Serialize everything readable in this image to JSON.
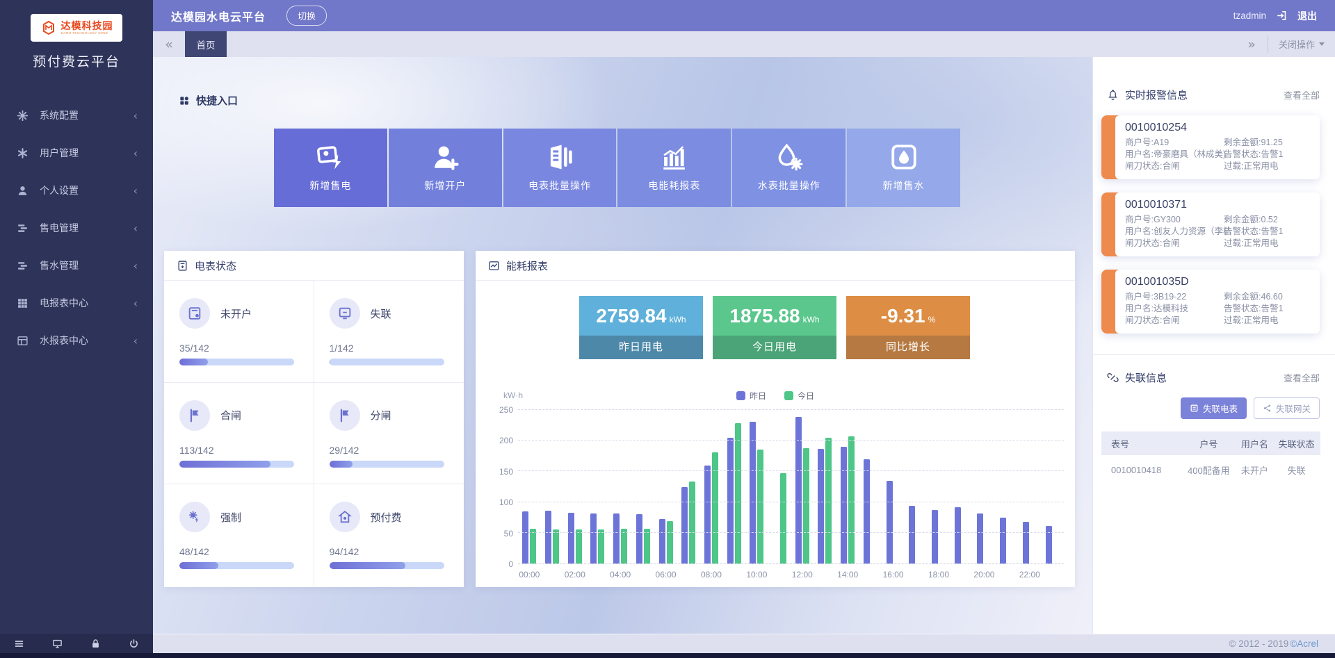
{
  "sidebar": {
    "logo": {
      "brand": "达模科技园",
      "brand_sub": "DAMO TECHNOLOGY ZONE",
      "platform": "预付费云平台"
    },
    "chevron": "‹",
    "items": [
      {
        "icon": "gear-icon",
        "label": "系统配置"
      },
      {
        "icon": "asterisk-icon",
        "label": "用户管理"
      },
      {
        "icon": "user-icon",
        "label": "个人设置"
      },
      {
        "icon": "list-icon",
        "label": "售电管理"
      },
      {
        "icon": "list-icon",
        "label": "售水管理"
      },
      {
        "icon": "grid-icon",
        "label": "电报表中心"
      },
      {
        "icon": "table-icon",
        "label": "水报表中心"
      }
    ]
  },
  "header": {
    "title": "达模园水电云平台",
    "switch_label": "切换",
    "username": "tzadmin",
    "logout_label": "退出"
  },
  "tabbar": {
    "collapse_glyph": "«",
    "active_tab": "首页",
    "expand_glyph": "»",
    "close_menu": "关闭操作"
  },
  "main": {
    "quick_entry": {
      "title": "快捷入口",
      "buttons": [
        {
          "icon": "sell-electric-icon",
          "label": "新增售电",
          "color": "#666dd6"
        },
        {
          "icon": "add-account-icon",
          "label": "新增开户",
          "color": "#7280dc"
        },
        {
          "icon": "meter-batch-icon",
          "label": "电表批量操作",
          "color": "#7a87e0"
        },
        {
          "icon": "energy-report-icon",
          "label": "电能耗报表",
          "color": "#7b8ce1"
        },
        {
          "icon": "water-batch-icon",
          "label": "水表批量操作",
          "color": "#7f91e3"
        },
        {
          "icon": "sell-water-icon",
          "label": "新增售水",
          "color": "#94a8ea"
        }
      ]
    },
    "meter_status": {
      "title": "电表状态",
      "total": 142,
      "items": [
        {
          "icon": "meter-icon",
          "label": "未开户",
          "count": 35,
          "display": "35/142"
        },
        {
          "icon": "offline-meter-icon",
          "label": "失联",
          "count": 1,
          "display": "1/142"
        },
        {
          "icon": "flag-icon",
          "label": "合闸",
          "count": 113,
          "display": "113/142"
        },
        {
          "icon": "flag-icon",
          "label": "分闸",
          "count": 29,
          "display": "29/142"
        },
        {
          "icon": "force-icon",
          "label": "强制",
          "count": 48,
          "display": "48/142"
        },
        {
          "icon": "prepay-icon",
          "label": "预付费",
          "count": 94,
          "display": "94/142"
        }
      ]
    },
    "energy_report": {
      "title": "能耗报表",
      "stats": [
        {
          "value": "2759.84",
          "unit": "kWh",
          "label": "昨日用电",
          "color_top": "#5fb0da",
          "color_bottom": "#4d88a9"
        },
        {
          "value": "1875.88",
          "unit": "kWh",
          "label": "今日用电",
          "color_top": "#5bc78d",
          "color_bottom": "#4aa477"
        },
        {
          "value": "-9.31",
          "unit": "%",
          "label": "同比增长",
          "color_top": "#dd8e44",
          "color_bottom": "#b57941"
        }
      ],
      "chart_data": {
        "type": "bar",
        "ylabel": "kW·h",
        "ylim": [
          0,
          250
        ],
        "yticks": [
          0,
          50,
          100,
          150,
          200,
          250
        ],
        "legend_position": "top",
        "grid": true,
        "x": [
          "00:00",
          "01:00",
          "02:00",
          "03:00",
          "04:00",
          "05:00",
          "06:00",
          "07:00",
          "08:00",
          "09:00",
          "10:00",
          "11:00",
          "12:00",
          "13:00",
          "14:00",
          "15:00",
          "16:00",
          "17:00",
          "18:00",
          "19:00",
          "20:00",
          "21:00",
          "22:00",
          "23:00"
        ],
        "series": [
          {
            "name": "昨日",
            "color": "#6d74d8",
            "values": [
              85,
              86,
              83,
              82,
              82,
              80,
              72,
              125,
              160,
              205,
              231,
              null,
              239,
              187,
              190,
              170,
              135,
              94,
              87,
              92,
              81,
              75,
              68,
              61
            ]
          },
          {
            "name": "今日",
            "color": "#4dc688",
            "values": [
              57,
              55,
              56,
              55,
              57,
              57,
              69,
              134,
              181,
              229,
              186,
              147,
              188,
              205,
              207,
              null,
              null,
              null,
              null,
              null,
              null,
              null,
              null,
              null
            ]
          }
        ]
      }
    }
  },
  "alarm_panel": {
    "title": "实时报警信息",
    "view_all": "查看全部",
    "cards": [
      {
        "meter_no": "0010010254",
        "rows": [
          [
            "商户号:A19",
            "剩余金额:91.25"
          ],
          [
            "用户名:帝豪磨具（林成美)",
            "告警状态:告警1"
          ],
          [
            "闸刀状态:合闸",
            "过载:正常用电"
          ]
        ]
      },
      {
        "meter_no": "0010010371",
        "rows": [
          [
            "商户号:GY300",
            "剩余金额:0.52"
          ],
          [
            "用户名:创友人力资源（李桔",
            "告警状态:告警1"
          ],
          [
            "闸刀状态:合闸",
            "过载:正常用电"
          ]
        ]
      },
      {
        "meter_no": "001001035D",
        "rows": [
          [
            "商户号:3B19-22",
            "剩余金额:46.60"
          ],
          [
            "用户名:达模科技",
            "告警状态:告警1"
          ],
          [
            "闸刀状态:合闸",
            "过载:正常用电"
          ]
        ]
      }
    ]
  },
  "offline_panel": {
    "title": "失联信息",
    "view_all": "查看全部",
    "buttons": [
      {
        "icon": "offline-meter-btn-icon",
        "label": "失联电表",
        "active": true
      },
      {
        "icon": "offline-gateway-icon",
        "label": "失联网关",
        "active": false
      }
    ],
    "table": {
      "headers": [
        "表号",
        "户号",
        "用户名",
        "失联状态"
      ],
      "rows": [
        [
          "0010010418",
          "400配备用",
          "未开户",
          "失联"
        ]
      ]
    }
  },
  "footer": {
    "copyright_left": "© 2012 - 2019",
    "copyright_brand": "©Acrel"
  }
}
